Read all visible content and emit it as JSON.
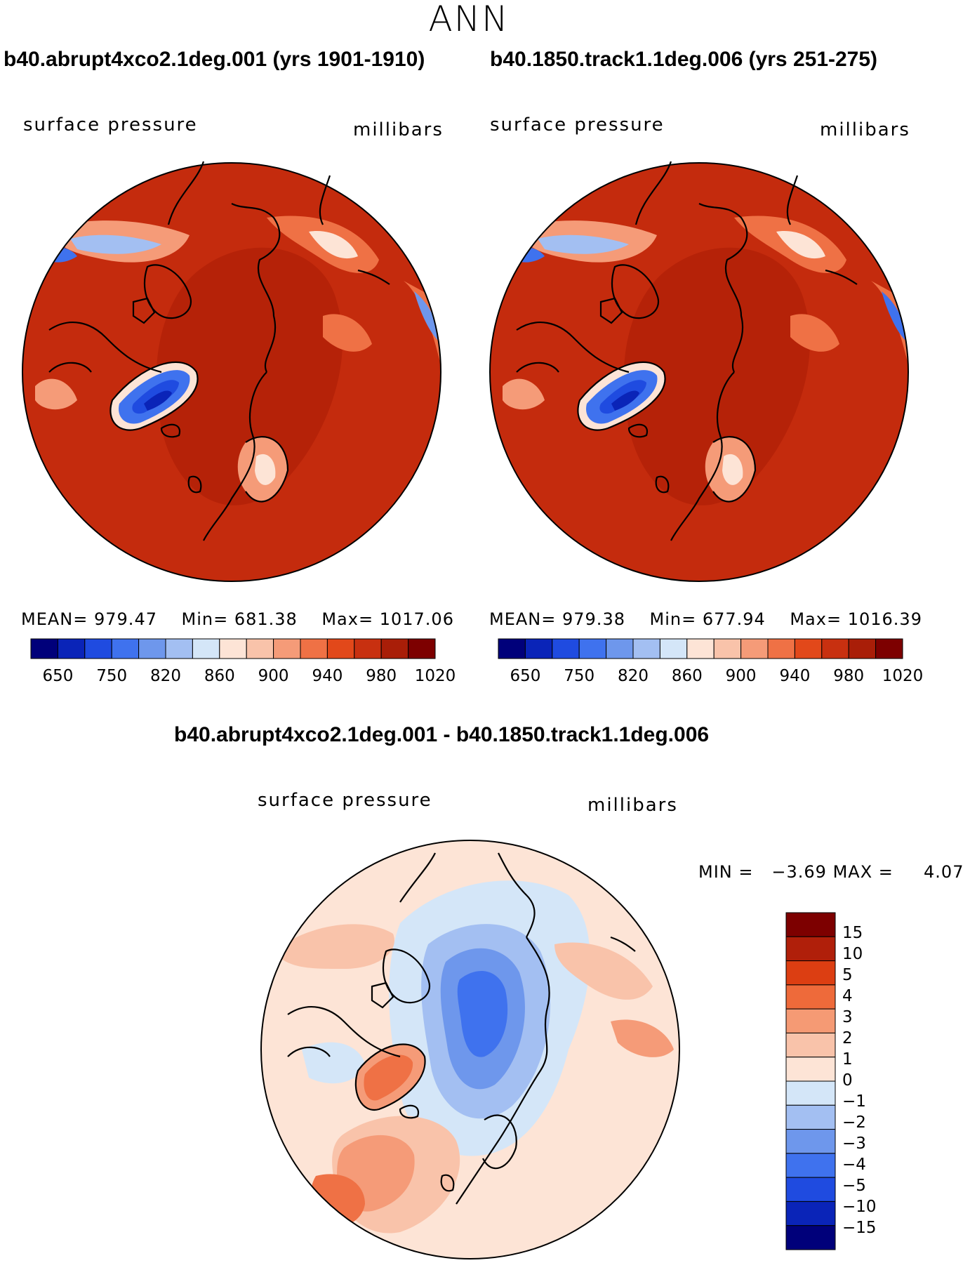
{
  "season": "ANN",
  "left_panel": {
    "title": "b40.abrupt4xco2.1deg.001 (yrs 1901-1910)",
    "variable": "surface pressure",
    "units": "millibars",
    "mean_label": "MEAN=",
    "mean": "979.47",
    "min_label": "Min=",
    "min": "681.38",
    "max_label": "Max=",
    "max": "1017.06"
  },
  "right_panel": {
    "title": "b40.1850.track1.1deg.006 (yrs 251-275)",
    "variable": "surface pressure",
    "units": "millibars",
    "mean_label": "MEAN=",
    "mean": "979.38",
    "min_label": "Min=",
    "min": "677.94",
    "max_label": "Max=",
    "max": "1016.39"
  },
  "diff_panel": {
    "title": "b40.abrupt4xco2.1deg.001 - b40.1850.track1.1deg.006",
    "variable": "surface pressure",
    "units": "millibars",
    "min_label": "MIN =",
    "min": "−3.69",
    "max_label": "MAX =",
    "max": "4.07"
  },
  "abs_colorbar": {
    "colors": [
      "#00007a",
      "#0a24b8",
      "#1f4be0",
      "#3f72ee",
      "#6e97ec",
      "#a3bff2",
      "#d4e6f8",
      "#fde4d6",
      "#f9c3aa",
      "#f59b78",
      "#ef7145",
      "#e2481a",
      "#c83010",
      "#a91e08",
      "#7d0000"
    ],
    "tick_labels": [
      "650",
      "750",
      "820",
      "860",
      "900",
      "940",
      "980",
      "1020"
    ]
  },
  "diff_colorbar": {
    "colors": [
      "#7d0000",
      "#b01f0a",
      "#dc3e12",
      "#ee6a3a",
      "#f59a74",
      "#f9c3aa",
      "#fde4d6",
      "#d4e6f8",
      "#a3bff2",
      "#6e97ec",
      "#3f72ee",
      "#1f4be0",
      "#0a24b8",
      "#00007a"
    ],
    "tick_labels": [
      "15",
      "10",
      "5",
      "4",
      "3",
      "2",
      "1",
      "0",
      "−1",
      "−2",
      "−3",
      "−4",
      "−5",
      "−10",
      "−15"
    ]
  },
  "colors": {
    "abs_background": "#c42b0d",
    "abs_interior": "#b52208",
    "diff_background": "#fde4d6"
  }
}
